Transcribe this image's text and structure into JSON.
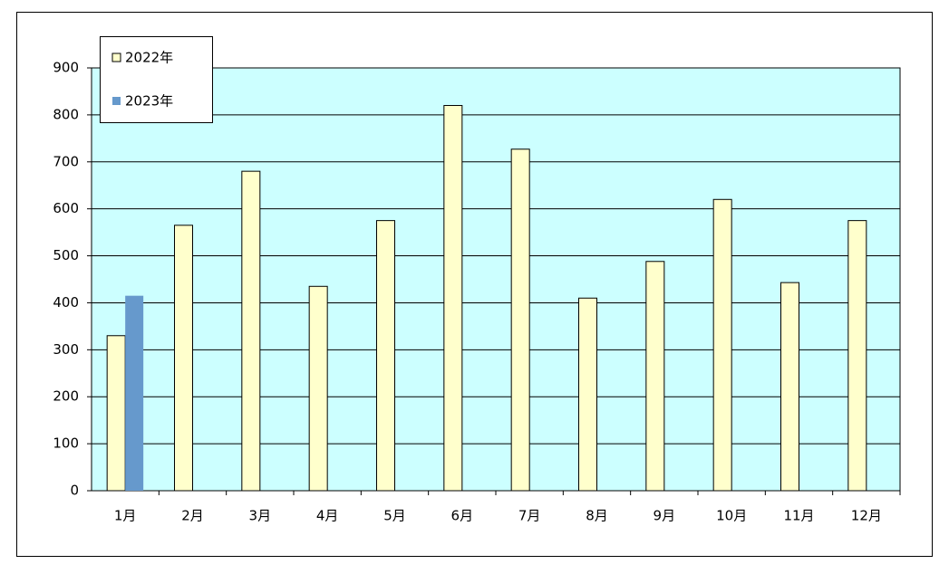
{
  "chart_data": {
    "type": "bar",
    "categories": [
      "1月",
      "2月",
      "3月",
      "4月",
      "5月",
      "6月",
      "7月",
      "8月",
      "9月",
      "10月",
      "11月",
      "12月"
    ],
    "series": [
      {
        "name": "2022年",
        "color": "#ffffcc",
        "values": [
          330,
          565,
          680,
          435,
          575,
          820,
          727,
          410,
          488,
          620,
          443,
          575
        ]
      },
      {
        "name": "2023年",
        "color": "#6699cc",
        "values": [
          415,
          null,
          null,
          null,
          null,
          null,
          null,
          null,
          null,
          null,
          null,
          null
        ]
      }
    ],
    "ylim": [
      0,
      900
    ],
    "yticks": [
      0,
      100,
      200,
      300,
      400,
      500,
      600,
      700,
      800,
      900
    ],
    "grid": true,
    "plot_background": "#ccffff",
    "legend": "top-left"
  }
}
